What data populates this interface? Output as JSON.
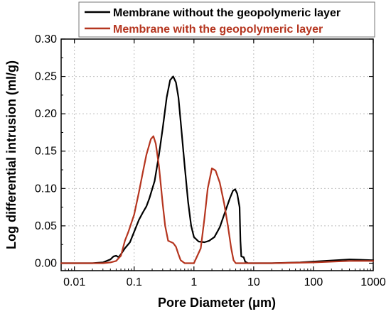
{
  "chart_data": {
    "type": "line",
    "xlabel": "Pore Diameter (μm)",
    "ylabel": "Log differential intrusion (ml/g)",
    "xscale": "log",
    "xlim": [
      0.006,
      1000
    ],
    "ylim": [
      -0.01,
      0.3
    ],
    "x_ticks": [
      {
        "value": 0.01,
        "label": "0.01"
      },
      {
        "value": 0.1,
        "label": "0.1"
      },
      {
        "value": 1,
        "label": "1"
      },
      {
        "value": 10,
        "label": "10"
      },
      {
        "value": 100,
        "label": "100"
      },
      {
        "value": 1000,
        "label": "1000"
      }
    ],
    "y_ticks": [
      {
        "value": 0.0,
        "label": "0.00"
      },
      {
        "value": 0.05,
        "label": "0.05"
      },
      {
        "value": 0.1,
        "label": "0.10"
      },
      {
        "value": 0.15,
        "label": "0.15"
      },
      {
        "value": 0.2,
        "label": "0.20"
      },
      {
        "value": 0.25,
        "label": "0.25"
      },
      {
        "value": 0.3,
        "label": "0.30"
      }
    ],
    "grid": true,
    "legend_position": "top",
    "series": [
      {
        "name": "Membrane without the geopolymeric layer",
        "color": "#000000",
        "points": [
          [
            0.006,
            0.0
          ],
          [
            0.02,
            0.0
          ],
          [
            0.03,
            0.001
          ],
          [
            0.04,
            0.005
          ],
          [
            0.045,
            0.009
          ],
          [
            0.05,
            0.01
          ],
          [
            0.055,
            0.008
          ],
          [
            0.06,
            0.012
          ],
          [
            0.07,
            0.02
          ],
          [
            0.085,
            0.028
          ],
          [
            0.1,
            0.042
          ],
          [
            0.12,
            0.058
          ],
          [
            0.14,
            0.068
          ],
          [
            0.16,
            0.076
          ],
          [
            0.18,
            0.087
          ],
          [
            0.22,
            0.11
          ],
          [
            0.26,
            0.145
          ],
          [
            0.3,
            0.18
          ],
          [
            0.35,
            0.222
          ],
          [
            0.4,
            0.245
          ],
          [
            0.45,
            0.25
          ],
          [
            0.5,
            0.242
          ],
          [
            0.55,
            0.222
          ],
          [
            0.6,
            0.19
          ],
          [
            0.7,
            0.13
          ],
          [
            0.8,
            0.082
          ],
          [
            0.9,
            0.05
          ],
          [
            1.0,
            0.035
          ],
          [
            1.2,
            0.029
          ],
          [
            1.5,
            0.028
          ],
          [
            1.8,
            0.03
          ],
          [
            2.2,
            0.035
          ],
          [
            2.7,
            0.048
          ],
          [
            3.3,
            0.068
          ],
          [
            4.0,
            0.087
          ],
          [
            4.5,
            0.097
          ],
          [
            4.9,
            0.099
          ],
          [
            5.3,
            0.093
          ],
          [
            5.8,
            0.075
          ],
          [
            6.0,
            0.03
          ],
          [
            6.2,
            0.009
          ],
          [
            6.8,
            0.008
          ],
          [
            7.2,
            0.002
          ],
          [
            8.0,
            0.0
          ],
          [
            20,
            0.0
          ],
          [
            60,
            0.001
          ],
          [
            150,
            0.003
          ],
          [
            400,
            0.005
          ],
          [
            1000,
            0.004
          ]
        ]
      },
      {
        "name": "Membrane with the geopolymeric layer",
        "color": "#b5351f",
        "points": [
          [
            0.006,
            0.0
          ],
          [
            0.03,
            0.0
          ],
          [
            0.04,
            0.001
          ],
          [
            0.05,
            0.003
          ],
          [
            0.06,
            0.01
          ],
          [
            0.07,
            0.03
          ],
          [
            0.08,
            0.042
          ],
          [
            0.1,
            0.065
          ],
          [
            0.12,
            0.095
          ],
          [
            0.14,
            0.122
          ],
          [
            0.16,
            0.145
          ],
          [
            0.19,
            0.166
          ],
          [
            0.21,
            0.17
          ],
          [
            0.23,
            0.16
          ],
          [
            0.26,
            0.13
          ],
          [
            0.3,
            0.08
          ],
          [
            0.33,
            0.05
          ],
          [
            0.37,
            0.03
          ],
          [
            0.45,
            0.027
          ],
          [
            0.5,
            0.022
          ],
          [
            0.55,
            0.012
          ],
          [
            0.6,
            0.004
          ],
          [
            0.7,
            0.0
          ],
          [
            1.0,
            0.0
          ],
          [
            1.3,
            0.02
          ],
          [
            1.5,
            0.06
          ],
          [
            1.7,
            0.1
          ],
          [
            2.0,
            0.127
          ],
          [
            2.3,
            0.124
          ],
          [
            2.7,
            0.108
          ],
          [
            3.2,
            0.08
          ],
          [
            3.7,
            0.05
          ],
          [
            4.2,
            0.02
          ],
          [
            4.6,
            0.004
          ],
          [
            5.0,
            0.0
          ],
          [
            20,
            0.0
          ],
          [
            100,
            0.001
          ],
          [
            400,
            0.003
          ],
          [
            1000,
            0.003
          ]
        ]
      }
    ]
  }
}
